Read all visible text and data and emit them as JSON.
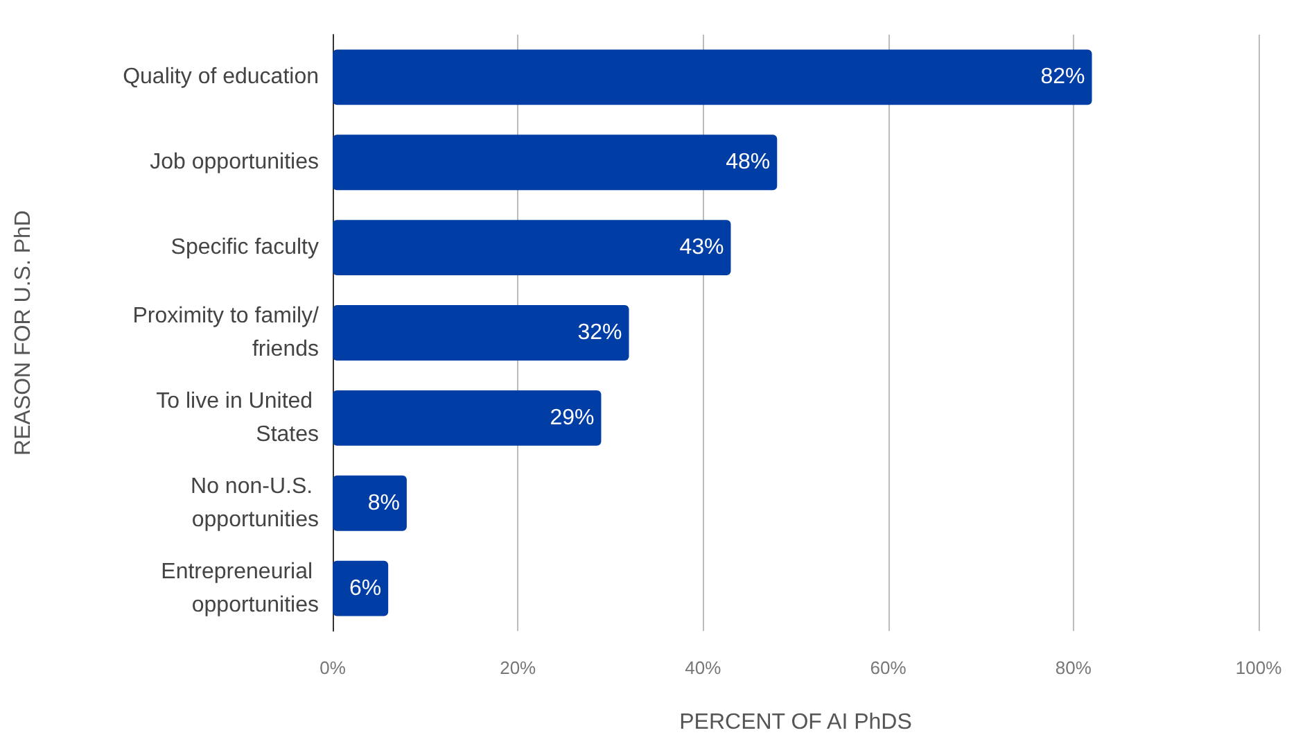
{
  "chart_data": {
    "type": "bar",
    "orientation": "horizontal",
    "categories": [
      "Quality of education",
      "Job opportunities",
      "Specific faculty",
      "Proximity to family/friends",
      "To live in United States",
      "No non-U.S. opportunities",
      "Entrepreneurial opportunities"
    ],
    "values": [
      82,
      48,
      43,
      32,
      29,
      8,
      6
    ],
    "value_labels": [
      "82%",
      "48%",
      "43%",
      "32%",
      "29%",
      "8%",
      "6%"
    ],
    "color": "#003da5",
    "xlabel": "PERCENT OF AI PhDS",
    "ylabel": "REASON FOR U.S. PhD",
    "xlim": [
      0,
      100
    ],
    "xticks": [
      {
        "value": 0,
        "label": "0%"
      },
      {
        "value": 20,
        "label": "20%"
      },
      {
        "value": 40,
        "label": "40%"
      },
      {
        "value": 60,
        "label": "60%"
      },
      {
        "value": 80,
        "label": "80%"
      },
      {
        "value": 100,
        "label": "100%"
      }
    ],
    "grid": "x"
  }
}
